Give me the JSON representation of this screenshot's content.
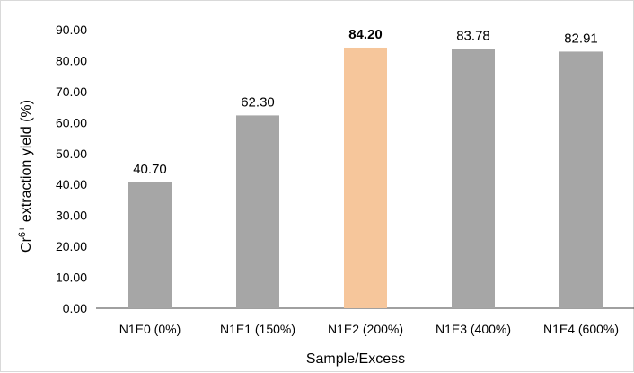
{
  "chart_data": {
    "type": "bar",
    "categories": [
      "N1E0 (0%)",
      "N1E1 (150%)",
      "N1E2 (200%)",
      "N1E3 (400%)",
      "N1E4 (600%)"
    ],
    "values": [
      40.7,
      62.3,
      84.2,
      83.78,
      82.91
    ],
    "value_labels": [
      "40.70",
      "62.30",
      "84.20",
      "83.78",
      "82.91"
    ],
    "highlight_index": 2,
    "colors": {
      "default": "#a6a6a6",
      "highlight": "#f6c69b",
      "axis": "#404040"
    },
    "title": "",
    "xlabel": "Sample/Excess",
    "ylabel_base": "Cr",
    "ylabel_sup": "6+",
    "ylabel_rest": " extraction  yield  (%)",
    "ylim": [
      0,
      90
    ],
    "yticks": [
      "0.00",
      "10.00",
      "20.00",
      "30.00",
      "40.00",
      "50.00",
      "60.00",
      "70.00",
      "80.00",
      "90.00"
    ],
    "grid": false,
    "legend": "none"
  }
}
